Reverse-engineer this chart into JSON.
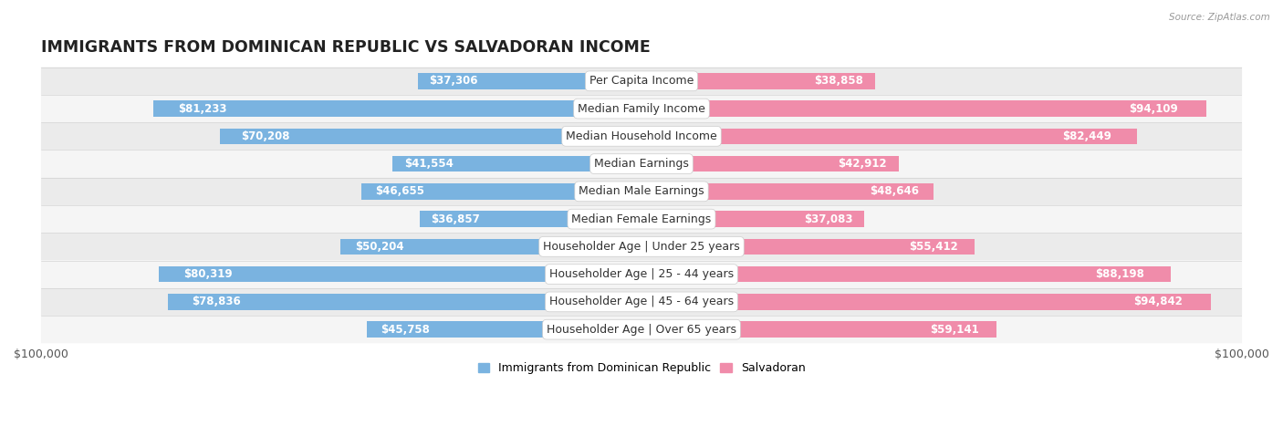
{
  "title": "IMMIGRANTS FROM DOMINICAN REPUBLIC VS SALVADORAN INCOME",
  "source": "Source: ZipAtlas.com",
  "categories": [
    "Per Capita Income",
    "Median Family Income",
    "Median Household Income",
    "Median Earnings",
    "Median Male Earnings",
    "Median Female Earnings",
    "Householder Age | Under 25 years",
    "Householder Age | 25 - 44 years",
    "Householder Age | 45 - 64 years",
    "Householder Age | Over 65 years"
  ],
  "dominican_values": [
    37306,
    81233,
    70208,
    41554,
    46655,
    36857,
    50204,
    80319,
    78836,
    45758
  ],
  "salvadoran_values": [
    38858,
    94109,
    82449,
    42912,
    48646,
    37083,
    55412,
    88198,
    94842,
    59141
  ],
  "dominican_labels": [
    "$37,306",
    "$81,233",
    "$70,208",
    "$41,554",
    "$46,655",
    "$36,857",
    "$50,204",
    "$80,319",
    "$78,836",
    "$45,758"
  ],
  "salvadoran_labels": [
    "$38,858",
    "$94,109",
    "$82,449",
    "$42,912",
    "$48,646",
    "$37,083",
    "$55,412",
    "$88,198",
    "$94,842",
    "$59,141"
  ],
  "dominican_color": "#7ab3e0",
  "salvadoran_color": "#f08caa",
  "dominican_label_color_inside": "#ffffff",
  "dominican_label_color_outside": "#444444",
  "salvadoran_label_color_inside": "#ffffff",
  "salvadoran_label_color_outside": "#444444",
  "max_value": 100000,
  "bar_height": 0.58,
  "row_bg_color": "#ebebeb",
  "row_bg_alt": "#f5f5f5",
  "title_fontsize": 12.5,
  "label_fontsize": 8.5,
  "category_fontsize": 9,
  "legend_dominican": "Immigrants from Dominican Republic",
  "legend_salvadoran": "Salvadoran",
  "background_color": "#ffffff",
  "inside_label_threshold": 0.18
}
